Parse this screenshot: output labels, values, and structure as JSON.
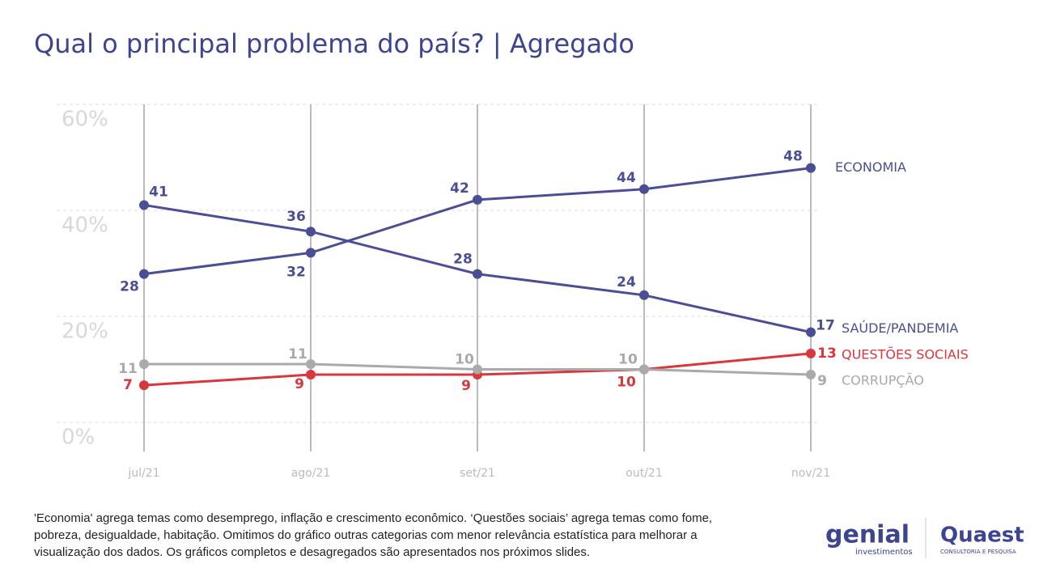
{
  "chart_data": {
    "type": "line",
    "title": "Qual o principal problema do país? | Agregado",
    "categories": [
      "jul/21",
      "ago/21",
      "set/21",
      "out/21",
      "nov/21"
    ],
    "series": [
      {
        "name": "ECONOMIA",
        "color": "#4a4e96",
        "values": [
          28,
          32,
          42,
          44,
          48
        ]
      },
      {
        "name": "SAÚDE/PANDEMIA",
        "color": "#4a4e96",
        "values": [
          41,
          36,
          28,
          24,
          17
        ]
      },
      {
        "name": "QUESTÕES SOCIAIS",
        "color": "#d9363e",
        "values": [
          7,
          9,
          9,
          10,
          13
        ]
      },
      {
        "name": "CORRUPÇÃO",
        "color": "#aaaaaa",
        "values": [
          11,
          11,
          10,
          10,
          9
        ]
      }
    ],
    "ylim": [
      0,
      60
    ],
    "yticks": [
      {
        "value": 0,
        "label": "0%"
      },
      {
        "value": 20,
        "label": "20%"
      },
      {
        "value": 40,
        "label": "40%"
      },
      {
        "value": 60,
        "label": "60%"
      }
    ],
    "grid": true
  },
  "footnote": "'Economia' agrega temas como desemprego, inflação e crescimento econômico. ‘Questões sociais’ agrega temas como fome, pobreza, desigualdade, habitação. Omitimos do gráfico outras categorias com menor relevância estatística para melhorar a visualização dos dados. Os gráficos completos e desagregados são apresentados nos próximos slides.",
  "logos": {
    "genial": "genial",
    "genial_sub": "investimentos",
    "quaest": "Quaest",
    "quaest_sub": "CONSULTORIA E PESQUISA"
  }
}
